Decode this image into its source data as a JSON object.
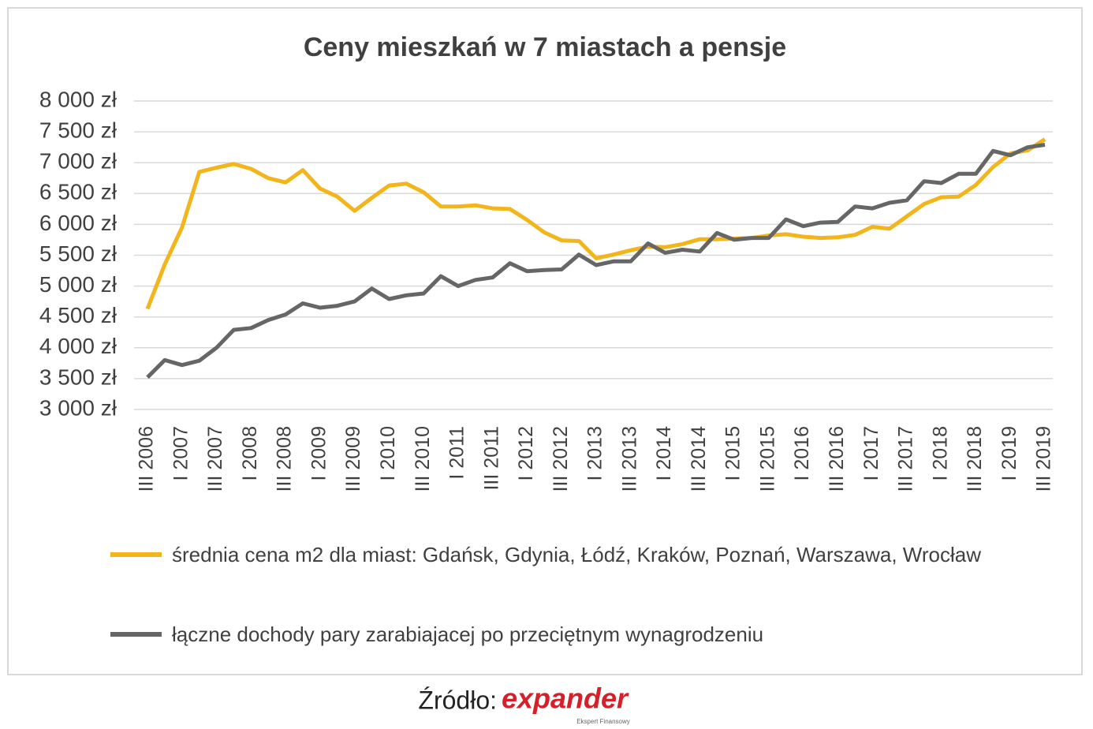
{
  "chart_data": {
    "type": "line",
    "title": "Ceny mieszkań w 7 miastach a pensje",
    "categories": [
      "III 2006",
      null,
      "I 2007",
      null,
      "III 2007",
      null,
      "I 2008",
      null,
      "III 2008",
      null,
      "I 2009",
      null,
      "III 2009",
      null,
      "I 2010",
      null,
      "III 2010",
      null,
      "I 2011",
      null,
      "III 2011",
      null,
      "I 2012",
      null,
      "III 2012",
      null,
      "I 2013",
      null,
      "III 2013",
      null,
      "I 2014",
      null,
      "III 2014",
      null,
      "I 2015",
      null,
      "III 2015",
      null,
      "I 2016",
      null,
      "III 2016",
      null,
      "I 2017",
      null,
      "III 2017",
      null,
      "I 2018",
      null,
      "III 2018",
      null,
      "I 2019",
      null,
      "III 2019"
    ],
    "series": [
      {
        "name": "średnia cena m2 dla miast: Gdańsk, Gdynia, Łódź, Kraków, Poznań, Warszawa, Wrocław",
        "color": "#f2b51c",
        "values": [
          4630,
          5350,
          5950,
          6850,
          6920,
          6980,
          6900,
          6750,
          6680,
          6880,
          6580,
          6450,
          6220,
          6430,
          6630,
          6660,
          6520,
          6290,
          6290,
          6310,
          6260,
          6250,
          6070,
          5870,
          5740,
          5730,
          5450,
          5510,
          5580,
          5640,
          5630,
          5680,
          5760,
          5760,
          5770,
          5780,
          5820,
          5840,
          5800,
          5780,
          5790,
          5830,
          5960,
          5930,
          6130,
          6330,
          6440,
          6450,
          6640,
          6930,
          7150,
          7200,
          7380
        ]
      },
      {
        "name": "łączne dochody pary zarabiajacej po przeciętnym wynagrodzeniu",
        "color": "#666666",
        "values": [
          3520,
          3800,
          3720,
          3790,
          4000,
          4290,
          4320,
          4450,
          4540,
          4720,
          4650,
          4680,
          4750,
          4960,
          4790,
          4850,
          4880,
          5160,
          5000,
          5100,
          5140,
          5370,
          5240,
          5260,
          5270,
          5510,
          5340,
          5400,
          5400,
          5690,
          5540,
          5590,
          5560,
          5860,
          5750,
          5780,
          5780,
          6080,
          5970,
          6030,
          6040,
          6290,
          6260,
          6350,
          6390,
          6700,
          6670,
          6820,
          6820,
          7190,
          7120,
          7250,
          7290
        ]
      }
    ],
    "ylim": [
      3000,
      8000
    ],
    "yticks": [
      {
        "value": 3000,
        "label": "3 000 zł"
      },
      {
        "value": 3500,
        "label": "3 500 zł"
      },
      {
        "value": 4000,
        "label": "4 000 zł"
      },
      {
        "value": 4500,
        "label": "4 500 zł"
      },
      {
        "value": 5000,
        "label": "5 000 zł"
      },
      {
        "value": 5500,
        "label": "5 500 zł"
      },
      {
        "value": 6000,
        "label": "6 000 zł"
      },
      {
        "value": 6500,
        "label": "6 500 zł"
      },
      {
        "value": 7000,
        "label": "7 000 zł"
      },
      {
        "value": 7500,
        "label": "7 500 zł"
      },
      {
        "value": 8000,
        "label": "8 000 zł"
      }
    ],
    "grid": true,
    "source_label": "Źródło:",
    "source_brand": "expander",
    "source_tagline": "Ekspert Finansowy"
  }
}
